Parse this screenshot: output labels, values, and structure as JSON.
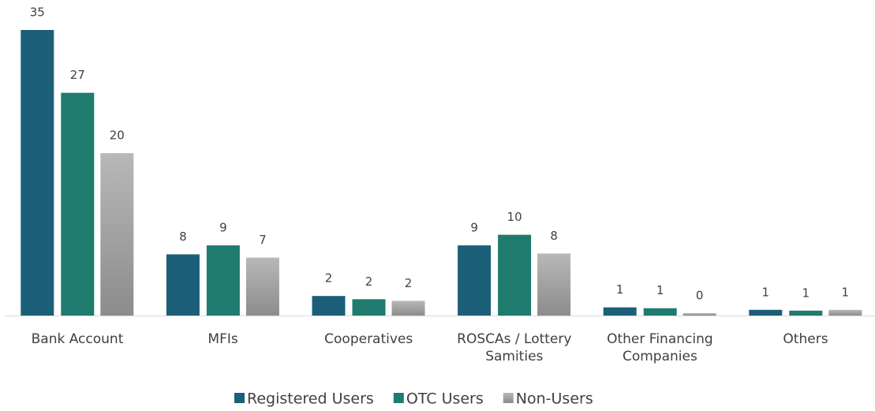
{
  "chart_data": {
    "type": "bar",
    "categories": [
      "Bank Account",
      "MFIs",
      "Cooperatives",
      "ROSCAs / Lottery Samities",
      "Other  Financing Companies",
      "Others"
    ],
    "series": [
      {
        "name": "Registered Users",
        "color": "#1b5f78",
        "values": [
          35,
          7.5,
          2.4,
          8.6,
          1.0,
          0.7
        ],
        "value_labels": [
          "35",
          "8",
          "2",
          "9",
          "1",
          "1"
        ]
      },
      {
        "name": "OTC Users",
        "color": "#1e7b6e",
        "values": [
          27.3,
          8.6,
          2.0,
          9.9,
          0.9,
          0.6
        ],
        "value_labels": [
          "27",
          "9",
          "2",
          "10",
          "1",
          "1"
        ]
      },
      {
        "name": "Non-Users",
        "color": "#a6a6a6",
        "values": [
          19.9,
          7.1,
          1.8,
          7.6,
          0.3,
          0.7
        ],
        "value_labels": [
          "20",
          "7",
          "2",
          "8",
          "0",
          "1"
        ]
      }
    ],
    "legend": "bottom"
  }
}
